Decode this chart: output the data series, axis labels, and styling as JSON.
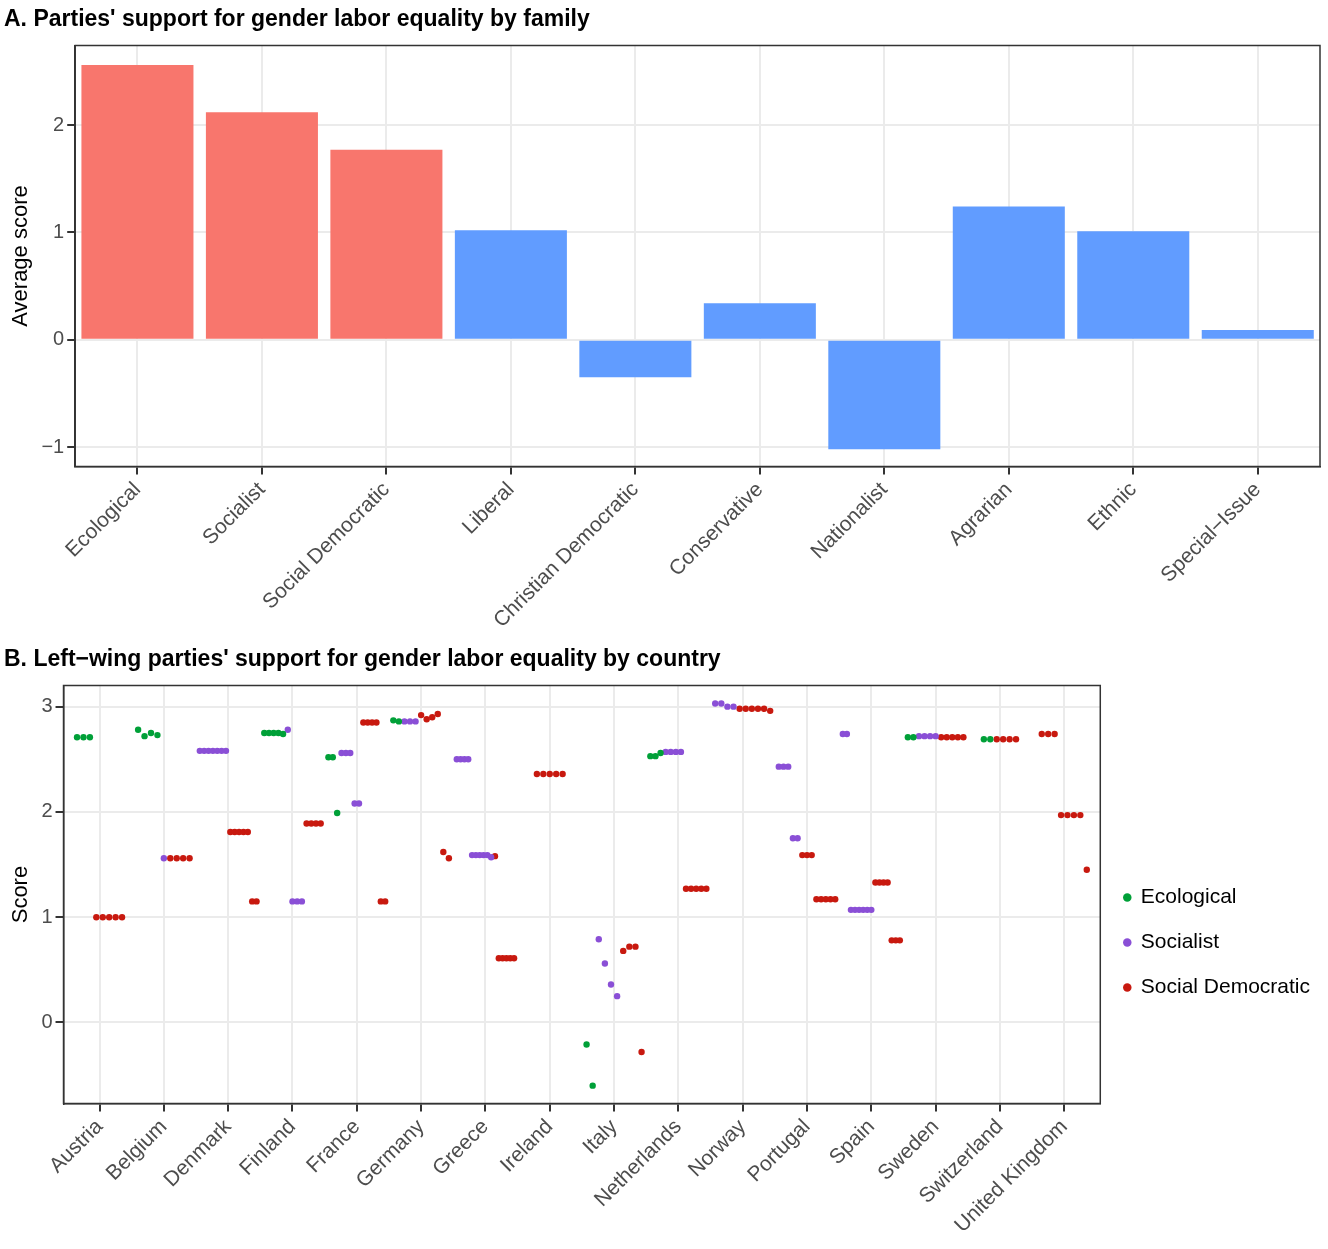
{
  "chart_data": [
    {
      "type": "bar",
      "title": "A. Parties' support for gender labor equality by family",
      "ylabel": "Average score",
      "categories": [
        "Ecological",
        "Socialist",
        "Social Democratic",
        "Liberal",
        "Christian Democratic",
        "Conservative",
        "Nationalist",
        "Agrarian",
        "Ethnic",
        "Special−Issue"
      ],
      "values": [
        2.56,
        2.12,
        1.77,
        1.02,
        -0.35,
        0.34,
        -1.02,
        1.24,
        1.01,
        0.09
      ],
      "colors": [
        "#f8766d",
        "#f8766d",
        "#f8766d",
        "#619cff",
        "#619cff",
        "#619cff",
        "#619cff",
        "#619cff",
        "#619cff",
        "#619cff"
      ],
      "ylim": [
        -1.18,
        2.74
      ],
      "yticks": [
        {
          "value": -1,
          "label": "−1"
        },
        0,
        1,
        2
      ],
      "grid": true
    },
    {
      "type": "scatter",
      "title": "B. Left−wing parties' support for gender labor equality by country",
      "ylabel": "Score",
      "categories": [
        "Austria",
        "Belgium",
        "Denmark",
        "Finland",
        "France",
        "Germany",
        "Greece",
        "Ireland",
        "Italy",
        "Netherlands",
        "Norway",
        "Portugal",
        "Spain",
        "Sweden",
        "Switzerland",
        "United Kingdom"
      ],
      "ylim": [
        -0.77,
        3.2
      ],
      "yticks": [
        0,
        1,
        2,
        3
      ],
      "grid": true,
      "legend": "right",
      "marker": "circle",
      "series": [
        {
          "name": "Ecological",
          "color": "#00a038",
          "x": [
            "Austria",
            "Austria",
            "Austria",
            "Belgium",
            "Belgium",
            "Belgium",
            "Belgium",
            "Finland",
            "Finland",
            "Finland",
            "Finland",
            "Finland",
            "France",
            "France",
            "France",
            "Germany",
            "Germany",
            "Italy",
            "Italy",
            "Netherlands",
            "Netherlands",
            "Netherlands",
            "Sweden",
            "Sweden",
            "Switzerland",
            "Switzerland"
          ],
          "values": [
            2.71,
            2.71,
            2.71,
            2.78,
            2.72,
            2.75,
            2.73,
            2.75,
            2.75,
            2.75,
            2.75,
            2.74,
            2.52,
            2.52,
            1.99,
            2.87,
            2.86,
            -0.21,
            -0.6,
            2.53,
            2.53,
            2.56,
            2.71,
            2.71,
            2.69,
            2.69
          ]
        },
        {
          "name": "Socialist",
          "color": "#8a4fd6",
          "x": [
            "Belgium",
            "Denmark",
            "Denmark",
            "Denmark",
            "Denmark",
            "Denmark",
            "Denmark",
            "Denmark",
            "Finland",
            "Finland",
            "Finland",
            "Finland",
            "France",
            "France",
            "France",
            "France",
            "France",
            "Germany",
            "Germany",
            "Germany",
            "Greece",
            "Greece",
            "Greece",
            "Greece",
            "Greece",
            "Greece",
            "Greece",
            "Greece",
            "Greece",
            "Greece",
            "Italy",
            "Italy",
            "Italy",
            "Italy",
            "Netherlands",
            "Netherlands",
            "Netherlands",
            "Netherlands",
            "Norway",
            "Norway",
            "Norway",
            "Norway",
            "Portugal",
            "Portugal",
            "Portugal",
            "Portugal",
            "Portugal",
            "Spain",
            "Spain",
            "Spain",
            "Spain",
            "Spain",
            "Spain",
            "Spain",
            "Spain",
            "Sweden",
            "Sweden",
            "Sweden",
            "Sweden"
          ],
          "values": [
            1.56,
            2.58,
            2.58,
            2.58,
            2.58,
            2.58,
            2.58,
            2.58,
            2.78,
            1.15,
            1.15,
            1.15,
            2.56,
            2.56,
            2.56,
            2.08,
            2.08,
            2.86,
            2.86,
            2.86,
            2.5,
            2.5,
            2.5,
            2.5,
            1.59,
            1.59,
            1.59,
            1.59,
            1.59,
            1.57,
            0.79,
            0.56,
            0.36,
            0.25,
            2.57,
            2.57,
            2.57,
            2.57,
            3.03,
            3.03,
            3.0,
            3.0,
            2.43,
            2.43,
            2.43,
            1.75,
            1.75,
            2.74,
            2.74,
            1.07,
            1.07,
            1.07,
            1.07,
            1.07,
            1.07,
            2.72,
            2.72,
            2.72,
            2.72
          ]
        },
        {
          "name": "Social Democratic",
          "color": "#c8190f",
          "x": [
            "Austria",
            "Austria",
            "Austria",
            "Austria",
            "Austria",
            "Belgium",
            "Belgium",
            "Belgium",
            "Belgium",
            "Denmark",
            "Denmark",
            "Denmark",
            "Denmark",
            "Denmark",
            "Denmark",
            "Denmark",
            "Finland",
            "Finland",
            "Finland",
            "Finland",
            "France",
            "France",
            "France",
            "France",
            "France",
            "France",
            "Germany",
            "Germany",
            "Germany",
            "Germany",
            "Germany",
            "Germany",
            "Greece",
            "Greece",
            "Greece",
            "Greece",
            "Greece",
            "Greece",
            "Ireland",
            "Ireland",
            "Ireland",
            "Ireland",
            "Ireland",
            "Italy",
            "Italy",
            "Italy",
            "Italy",
            "Netherlands",
            "Netherlands",
            "Netherlands",
            "Netherlands",
            "Netherlands",
            "Norway",
            "Norway",
            "Norway",
            "Norway",
            "Norway",
            "Norway",
            "Portugal",
            "Portugal",
            "Portugal",
            "Portugal",
            "Portugal",
            "Portugal",
            "Portugal",
            "Portugal",
            "Spain",
            "Spain",
            "Spain",
            "Spain",
            "Spain",
            "Spain",
            "Spain",
            "Sweden",
            "Sweden",
            "Sweden",
            "Sweden",
            "Sweden",
            "Switzerland",
            "Switzerland",
            "Switzerland",
            "Switzerland",
            "United Kingdom",
            "United Kingdom",
            "United Kingdom",
            "United Kingdom",
            "United Kingdom",
            "United Kingdom",
            "United Kingdom",
            "United Kingdom"
          ],
          "values": [
            1.0,
            1.0,
            1.0,
            1.0,
            1.0,
            1.56,
            1.56,
            1.56,
            1.56,
            1.81,
            1.81,
            1.81,
            1.81,
            1.81,
            1.15,
            1.15,
            1.89,
            1.89,
            1.89,
            1.89,
            2.85,
            2.85,
            2.85,
            2.85,
            1.15,
            1.15,
            2.92,
            2.88,
            2.9,
            2.93,
            1.62,
            1.56,
            1.58,
            0.61,
            0.61,
            0.61,
            0.61,
            0.61,
            2.36,
            2.36,
            2.36,
            2.36,
            2.36,
            0.68,
            0.72,
            0.72,
            -0.28,
            1.27,
            1.27,
            1.27,
            1.27,
            1.27,
            2.98,
            2.98,
            2.98,
            2.98,
            2.98,
            2.96,
            1.59,
            1.59,
            1.59,
            1.17,
            1.17,
            1.17,
            1.17,
            1.17,
            1.33,
            1.33,
            1.33,
            1.33,
            0.78,
            0.78,
            0.78,
            2.71,
            2.71,
            2.71,
            2.71,
            2.71,
            2.69,
            2.69,
            2.69,
            2.69,
            2.74,
            2.74,
            2.74,
            1.97,
            1.97,
            1.97,
            1.97,
            1.45
          ]
        }
      ]
    }
  ]
}
